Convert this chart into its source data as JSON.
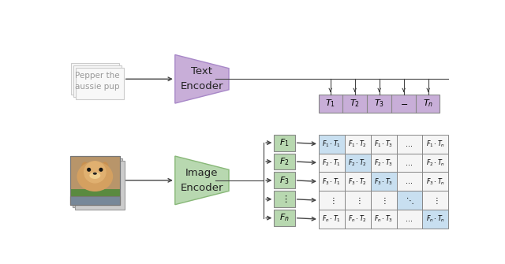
{
  "fig_width": 6.4,
  "fig_height": 3.35,
  "bg_color": "#ffffff",
  "text_encoder_color": "#c8aed8",
  "text_encoder_edge_color": "#a888c8",
  "text_encoder_label": "Text\nEncoder",
  "image_encoder_color": "#b8d8b0",
  "image_encoder_edge_color": "#88b878",
  "image_encoder_label": "Image\nEncoder",
  "text_doc_color": "#f8f8f8",
  "text_doc_edge_color": "#cccccc",
  "text_doc_label": "Pepper the\naussie pup",
  "text_doc_label_color": "#999999",
  "T_box_color": "#c8aed8",
  "T_box_edge_color": "#888888",
  "T_labels": [
    "$T_1$",
    "$T_2$",
    "$T_3$",
    "$-$",
    "$T_n$"
  ],
  "F_box_color": "#b8d8b0",
  "F_box_edge_color": "#888888",
  "F_labels": [
    "$F_1$",
    "$F_2$",
    "$F_3$",
    "$\\vdots$",
    "$F_n$"
  ],
  "matrix_bg": "#f5f5f5",
  "matrix_diag_color": "#c8dff0",
  "matrix_edge_color": "#888888",
  "arrow_color": "#444444",
  "dog_fur_color": "#c8963c",
  "dog_bg_color": "#8b7355",
  "dog_green_color": "#5a8a40",
  "dog_gray_color": "#778899"
}
